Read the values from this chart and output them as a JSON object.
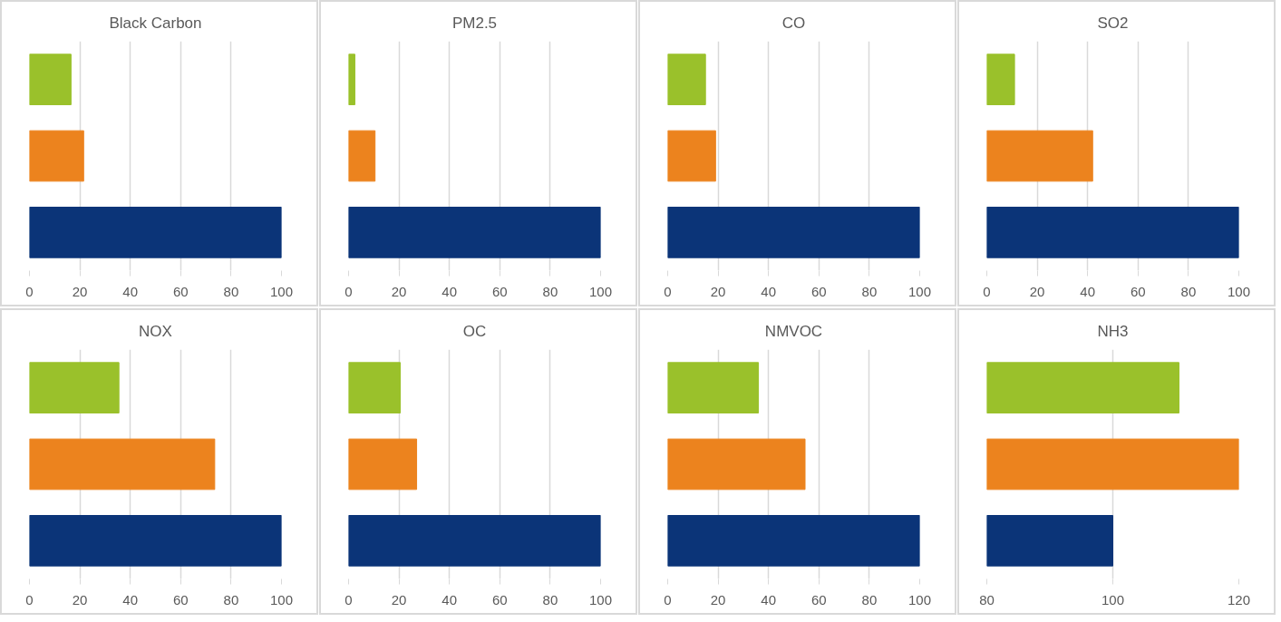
{
  "chart_data": [
    {
      "type": "bar",
      "orientation": "horizontal",
      "title": "Black Carbon",
      "categories": [
        null,
        null,
        null
      ],
      "values": [
        16.5,
        21.5,
        100
      ],
      "colors": [
        "#9ac12b",
        "#ec831e",
        "#0b3478"
      ],
      "xlim": [
        0,
        100
      ],
      "xticks": [
        0,
        20,
        40,
        60,
        80,
        100
      ],
      "grid": "x",
      "tick_labels": "x"
    },
    {
      "type": "bar",
      "orientation": "horizontal",
      "title": "PM2.5",
      "categories": [
        null,
        null,
        null
      ],
      "values": [
        2.5,
        10.5,
        100
      ],
      "colors": [
        "#9ac12b",
        "#ec831e",
        "#0b3478"
      ],
      "xlim": [
        0,
        100
      ],
      "xticks": [
        0,
        20,
        40,
        60,
        80,
        100
      ],
      "grid": "x",
      "tick_labels": "x"
    },
    {
      "type": "bar",
      "orientation": "horizontal",
      "title": "CO",
      "categories": [
        null,
        null,
        null
      ],
      "values": [
        15,
        19,
        100
      ],
      "colors": [
        "#9ac12b",
        "#ec831e",
        "#0b3478"
      ],
      "xlim": [
        0,
        100
      ],
      "xticks": [
        0,
        20,
        40,
        60,
        80,
        100
      ],
      "grid": "x",
      "tick_labels": "x"
    },
    {
      "type": "bar",
      "orientation": "horizontal",
      "title": "SO2",
      "categories": [
        null,
        null,
        null
      ],
      "values": [
        11,
        42,
        100
      ],
      "colors": [
        "#9ac12b",
        "#ec831e",
        "#0b3478"
      ],
      "xlim": [
        0,
        100
      ],
      "xticks": [
        0,
        20,
        40,
        60,
        80,
        100
      ],
      "grid": "x",
      "tick_labels": "x"
    },
    {
      "type": "bar",
      "orientation": "horizontal",
      "title": "NOX",
      "categories": [
        null,
        null,
        null
      ],
      "values": [
        35.5,
        73.5,
        100
      ],
      "colors": [
        "#9ac12b",
        "#ec831e",
        "#0b3478"
      ],
      "xlim": [
        0,
        100
      ],
      "xticks": [
        0,
        20,
        40,
        60,
        80,
        100
      ],
      "grid": "x",
      "tick_labels": "x"
    },
    {
      "type": "bar",
      "orientation": "horizontal",
      "title": "OC",
      "categories": [
        null,
        null,
        null
      ],
      "values": [
        20.5,
        27,
        100
      ],
      "colors": [
        "#9ac12b",
        "#ec831e",
        "#0b3478"
      ],
      "xlim": [
        0,
        100
      ],
      "xticks": [
        0,
        20,
        40,
        60,
        80,
        100
      ],
      "grid": "x",
      "tick_labels": "x"
    },
    {
      "type": "bar",
      "orientation": "horizontal",
      "title": "NMVOC",
      "categories": [
        null,
        null,
        null
      ],
      "values": [
        36,
        54.5,
        100
      ],
      "colors": [
        "#9ac12b",
        "#ec831e",
        "#0b3478"
      ],
      "xlim": [
        0,
        100
      ],
      "xticks": [
        0,
        20,
        40,
        60,
        80,
        100
      ],
      "grid": "x",
      "tick_labels": "x"
    },
    {
      "type": "bar",
      "orientation": "horizontal",
      "title": "NH3",
      "categories": [
        null,
        null,
        null
      ],
      "values": [
        110.5,
        120,
        100
      ],
      "colors": [
        "#9ac12b",
        "#ec831e",
        "#0b3478"
      ],
      "xlim": [
        80,
        120
      ],
      "xticks": [
        80,
        100,
        120
      ],
      "grid": "x",
      "tick_labels": "x"
    }
  ]
}
